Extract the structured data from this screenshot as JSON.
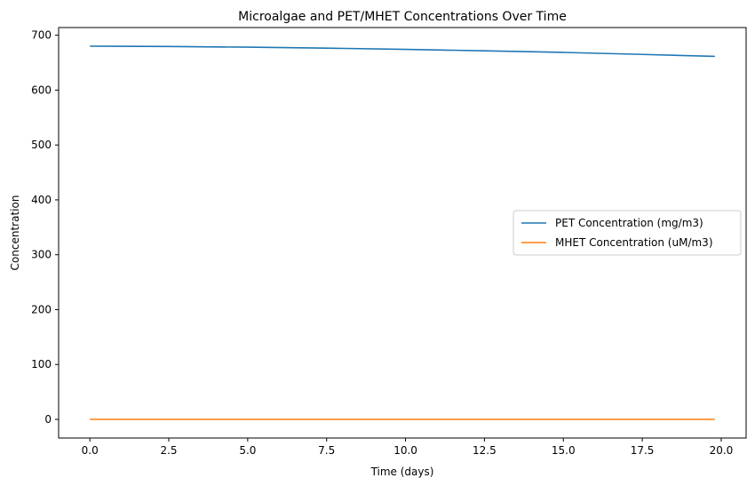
{
  "chart_data": {
    "type": "line",
    "title": "Microalgae and PET/MHET Concentrations Over Time",
    "xlabel": "Time (days)",
    "ylabel": "Concentration",
    "xlim": [
      -0.99,
      20.79
    ],
    "ylim": [
      -34,
      714
    ],
    "xticks": [
      0.0,
      2.5,
      5.0,
      7.5,
      10.0,
      12.5,
      15.0,
      17.5,
      20.0
    ],
    "xtick_labels": [
      "0.0",
      "2.5",
      "5.0",
      "7.5",
      "10.0",
      "12.5",
      "15.0",
      "17.5",
      "20.0"
    ],
    "yticks": [
      0,
      100,
      200,
      300,
      400,
      500,
      600,
      700
    ],
    "ytick_labels": [
      "0",
      "100",
      "200",
      "300",
      "400",
      "500",
      "600",
      "700"
    ],
    "grid": false,
    "legend_position": "center-right",
    "series": [
      {
        "name": "PET Concentration (mg/m3)",
        "color": "#1f77b4",
        "x": [
          0,
          2.5,
          5,
          7.5,
          10,
          12.5,
          15,
          17.5,
          19.8
        ],
        "y": [
          680,
          679.5,
          678.2,
          676.5,
          674.2,
          671.6,
          668.7,
          665.0,
          661.5
        ]
      },
      {
        "name": "MHET Concentration (uM/m3)",
        "color": "#ff7f0e",
        "x": [
          0,
          19.8
        ],
        "y": [
          0,
          0
        ]
      }
    ]
  }
}
